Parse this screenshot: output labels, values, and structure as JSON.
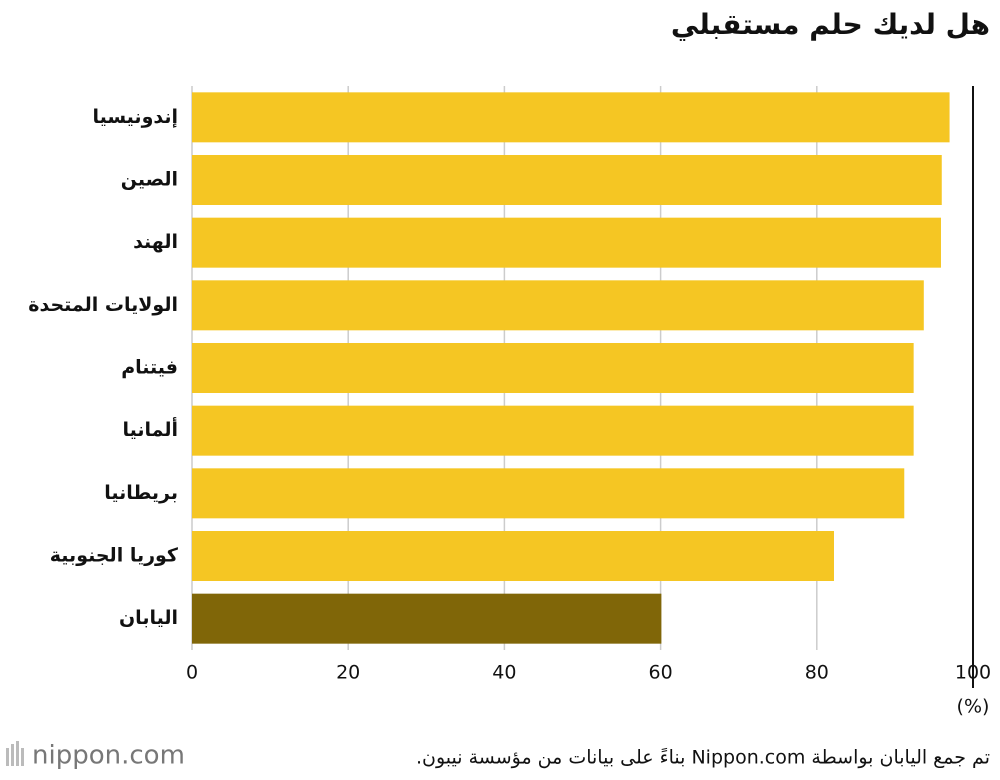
{
  "chart_data": {
    "type": "bar",
    "orientation": "horizontal",
    "title": "هل لديك حلم مستقبلي",
    "categories": [
      "إندونيسيا",
      "الصين",
      "الهند",
      "الولايات المتحدة",
      "فيتنام",
      "ألمانيا",
      "بريطانيا",
      "كوريا الجنوبية",
      "اليابان"
    ],
    "values": [
      97,
      96,
      95.9,
      93.7,
      92.4,
      92.4,
      91.2,
      82.2,
      60.1
    ],
    "colors": [
      "#f5c623",
      "#f5c623",
      "#f5c623",
      "#f5c623",
      "#f5c623",
      "#f5c623",
      "#f5c623",
      "#f5c623",
      "#806608"
    ],
    "xlim": [
      0,
      100
    ],
    "xticks": [
      0,
      20,
      40,
      60,
      80,
      100
    ],
    "x_unit": "(%)",
    "grid": true,
    "source": "تم جمع اليابان بواسطة Nippon.com بناءً على بيانات من مؤسسة نيبون.",
    "logo": "nippon.com"
  }
}
